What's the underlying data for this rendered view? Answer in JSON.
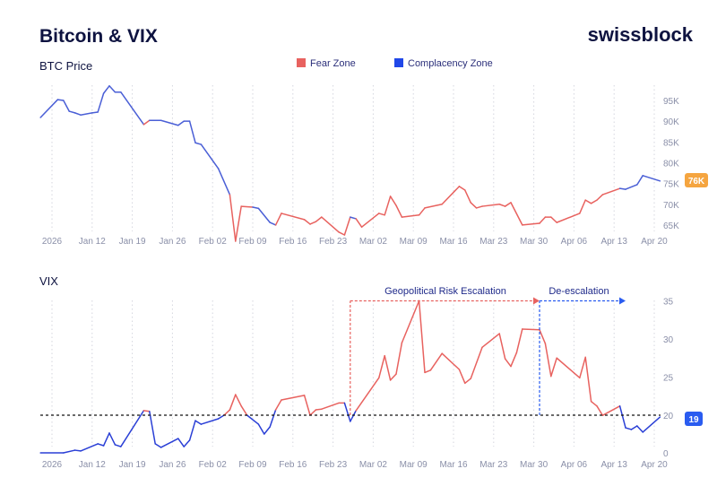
{
  "header": {
    "title": "Bitcoin & VIX",
    "brand": "swissblock"
  },
  "legend": [
    {
      "label": "Fear Zone",
      "color": "#e8625f"
    },
    {
      "label": "Complacency Zone",
      "color": "#2047e8"
    }
  ],
  "chart_data": [
    {
      "type": "line",
      "title": "BTC Price",
      "x_ticks": [
        "2026",
        "Jan 12",
        "Jan 19",
        "Jan 26",
        "Feb 02",
        "Feb 09",
        "Feb 16",
        "Feb 23",
        "Mar 02",
        "Mar 09",
        "Mar 16",
        "Mar 23",
        "Mar 30",
        "Apr 06",
        "Apr 13",
        "Apr 20"
      ],
      "y_ticks": [
        "65K",
        "70K",
        "75K",
        "80K",
        "85K",
        "90K",
        "95K"
      ],
      "y_unit": "K USD",
      "grid": "vertical dotted",
      "zone_colors": {
        "fear": "#e8625f",
        "complacency": "#4a5fd6"
      },
      "last_value_label": "76K",
      "last_value_color": "#f5a540",
      "points": [
        [
          "2026-01-03",
          90.9,
          "c"
        ],
        [
          "2026-01-06",
          95.2,
          "c"
        ],
        [
          "2026-01-07",
          95.0,
          "c"
        ],
        [
          "2026-01-08",
          92.4,
          "c"
        ],
        [
          "2026-01-09",
          92.0,
          "c"
        ],
        [
          "2026-01-10",
          91.5,
          "c"
        ],
        [
          "2026-01-12",
          92.0,
          "c"
        ],
        [
          "2026-01-13",
          92.2,
          "c"
        ],
        [
          "2026-01-14",
          96.7,
          "c"
        ],
        [
          "2026-01-15",
          98.5,
          "c"
        ],
        [
          "2026-01-16",
          97.0,
          "c"
        ],
        [
          "2026-01-17",
          97.0,
          "c"
        ],
        [
          "2026-01-21",
          89.2,
          "c"
        ],
        [
          "2026-01-22",
          90.2,
          "f"
        ],
        [
          "2026-01-24",
          90.2,
          "c"
        ],
        [
          "2026-01-27",
          89.0,
          "c"
        ],
        [
          "2026-01-28",
          90.0,
          "c"
        ],
        [
          "2026-01-29",
          90.0,
          "c"
        ],
        [
          "2026-01-30",
          84.8,
          "c"
        ],
        [
          "2026-01-31",
          84.4,
          "c"
        ],
        [
          "2026-02-03",
          78.6,
          "c"
        ],
        [
          "2026-02-05",
          72.3,
          "c"
        ],
        [
          "2026-02-06",
          61.1,
          "f"
        ],
        [
          "2026-02-07",
          69.5,
          "f"
        ],
        [
          "2026-02-09",
          69.3,
          "f"
        ],
        [
          "2026-02-10",
          69.0,
          "c"
        ],
        [
          "2026-02-12",
          65.6,
          "c"
        ],
        [
          "2026-02-13",
          65.0,
          "c"
        ],
        [
          "2026-02-14",
          67.8,
          "f"
        ],
        [
          "2026-02-18",
          66.3,
          "f"
        ],
        [
          "2026-02-19",
          65.2,
          "f"
        ],
        [
          "2026-02-20",
          65.8,
          "f"
        ],
        [
          "2026-02-21",
          66.9,
          "f"
        ],
        [
          "2026-02-24",
          63.3,
          "f"
        ],
        [
          "2026-02-25",
          62.6,
          "f"
        ],
        [
          "2026-02-26",
          66.9,
          "f"
        ],
        [
          "2026-02-27",
          66.5,
          "c"
        ],
        [
          "2026-02-28",
          64.5,
          "f"
        ],
        [
          "2026-03-03",
          67.8,
          "f"
        ],
        [
          "2026-03-04",
          67.4,
          "f"
        ],
        [
          "2026-03-05",
          71.9,
          "f"
        ],
        [
          "2026-03-06",
          69.7,
          "f"
        ],
        [
          "2026-03-07",
          66.9,
          "f"
        ],
        [
          "2026-03-10",
          67.4,
          "f"
        ],
        [
          "2026-03-11",
          69.1,
          "f"
        ],
        [
          "2026-03-14",
          70.0,
          "f"
        ],
        [
          "2026-03-17",
          74.3,
          "f"
        ],
        [
          "2026-03-18",
          73.4,
          "f"
        ],
        [
          "2026-03-19",
          70.4,
          "f"
        ],
        [
          "2026-03-20",
          69.1,
          "f"
        ],
        [
          "2026-03-21",
          69.5,
          "f"
        ],
        [
          "2026-03-24",
          70.0,
          "f"
        ],
        [
          "2026-03-25",
          69.5,
          "f"
        ],
        [
          "2026-03-26",
          70.4,
          "f"
        ],
        [
          "2026-03-28",
          65.0,
          "f"
        ],
        [
          "2026-03-31",
          65.4,
          "f"
        ],
        [
          "2026-04-01",
          66.9,
          "f"
        ],
        [
          "2026-04-02",
          66.9,
          "f"
        ],
        [
          "2026-04-03",
          65.6,
          "f"
        ],
        [
          "2026-04-07",
          67.8,
          "f"
        ],
        [
          "2026-04-08",
          71.0,
          "f"
        ],
        [
          "2026-04-09",
          70.2,
          "f"
        ],
        [
          "2026-04-10",
          71.0,
          "f"
        ],
        [
          "2026-04-11",
          72.3,
          "f"
        ],
        [
          "2026-04-14",
          73.8,
          "f"
        ],
        [
          "2026-04-15",
          73.6,
          "c"
        ],
        [
          "2026-04-17",
          74.7,
          "c"
        ],
        [
          "2026-04-18",
          76.9,
          "c"
        ],
        [
          "2026-04-21",
          75.6,
          "c"
        ]
      ]
    },
    {
      "type": "line",
      "title": "VIX",
      "x_ticks": [
        "2026",
        "Jan 12",
        "Jan 19",
        "Jan 26",
        "Feb 02",
        "Feb 09",
        "Feb 16",
        "Feb 23",
        "Mar 02",
        "Mar 09",
        "Mar 16",
        "Mar 23",
        "Mar 30",
        "Apr 06",
        "Apr 13",
        "Apr 20"
      ],
      "y_ticks": [
        "0",
        "20",
        "25",
        "30",
        "35"
      ],
      "threshold": 20,
      "grid": "vertical dotted",
      "zone_colors": {
        "fear": "#e8625f",
        "complacency": "#2a3fd6"
      },
      "last_value_label": "19",
      "last_value_color": "#2a5cf0",
      "annotations": [
        {
          "label": "Geopolitical Risk Escalation",
          "from": "2026-02-26",
          "to": "2026-03-31",
          "color": "#e8625f"
        },
        {
          "label": "De-escalation",
          "from": "2026-03-31",
          "to": "2026-04-15",
          "color": "#2a5cf0"
        }
      ],
      "points": [
        [
          "2026-01-03",
          0,
          "c"
        ],
        [
          "2026-01-07",
          0,
          "c"
        ],
        [
          "2026-01-09",
          1.4,
          "c"
        ],
        [
          "2026-01-10",
          1.0,
          "c"
        ],
        [
          "2026-01-13",
          4.8,
          "c"
        ],
        [
          "2026-01-14",
          3.8,
          "c"
        ],
        [
          "2026-01-15",
          10.5,
          "c"
        ],
        [
          "2026-01-16",
          4.3,
          "c"
        ],
        [
          "2026-01-17",
          3.3,
          "c"
        ],
        [
          "2026-01-21",
          20.6,
          "c"
        ],
        [
          "2026-01-22",
          20.5,
          "f"
        ],
        [
          "2026-01-23",
          4.8,
          "c"
        ],
        [
          "2026-01-24",
          2.9,
          "c"
        ],
        [
          "2026-01-27",
          7.6,
          "c"
        ],
        [
          "2026-01-28",
          3.3,
          "c"
        ],
        [
          "2026-01-29",
          6.7,
          "c"
        ],
        [
          "2026-01-30",
          17.1,
          "c"
        ],
        [
          "2026-01-31",
          15.2,
          "c"
        ],
        [
          "2026-02-03",
          18.1,
          "c"
        ],
        [
          "2026-02-04",
          20.0,
          "c"
        ],
        [
          "2026-02-05",
          20.7,
          "f"
        ],
        [
          "2026-02-06",
          22.7,
          "f"
        ],
        [
          "2026-02-07",
          21.2,
          "f"
        ],
        [
          "2026-02-08",
          20.0,
          "f"
        ],
        [
          "2026-02-10",
          15.2,
          "c"
        ],
        [
          "2026-02-11",
          10.0,
          "c"
        ],
        [
          "2026-02-12",
          13.8,
          "c"
        ],
        [
          "2026-02-13",
          20.7,
          "c"
        ],
        [
          "2026-02-14",
          22.0,
          "f"
        ],
        [
          "2026-02-18",
          22.6,
          "f"
        ],
        [
          "2026-02-19",
          20.0,
          "f"
        ],
        [
          "2026-02-20",
          20.7,
          "f"
        ],
        [
          "2026-02-21",
          20.8,
          "f"
        ],
        [
          "2026-02-24",
          21.6,
          "f"
        ],
        [
          "2026-02-25",
          21.6,
          "f"
        ],
        [
          "2026-02-26",
          16.7,
          "c"
        ],
        [
          "2026-02-27",
          20.6,
          "c"
        ],
        [
          "2026-03-03",
          24.9,
          "f"
        ],
        [
          "2026-03-04",
          27.8,
          "f"
        ],
        [
          "2026-03-05",
          24.6,
          "f"
        ],
        [
          "2026-03-06",
          25.4,
          "f"
        ],
        [
          "2026-03-07",
          29.5,
          "f"
        ],
        [
          "2026-03-10",
          35.0,
          "f"
        ],
        [
          "2026-03-11",
          25.6,
          "f"
        ],
        [
          "2026-03-12",
          25.9,
          "f"
        ],
        [
          "2026-03-14",
          28.1,
          "f"
        ],
        [
          "2026-03-17",
          26.0,
          "f"
        ],
        [
          "2026-03-18",
          24.2,
          "f"
        ],
        [
          "2026-03-19",
          24.8,
          "f"
        ],
        [
          "2026-03-21",
          28.9,
          "f"
        ],
        [
          "2026-03-24",
          30.7,
          "f"
        ],
        [
          "2026-03-25",
          27.4,
          "f"
        ],
        [
          "2026-03-26",
          26.4,
          "f"
        ],
        [
          "2026-03-27",
          28.2,
          "f"
        ],
        [
          "2026-03-28",
          31.3,
          "f"
        ],
        [
          "2026-03-31",
          31.2,
          "f"
        ],
        [
          "2026-04-01",
          29.4,
          "f"
        ],
        [
          "2026-04-02",
          25.1,
          "f"
        ],
        [
          "2026-04-03",
          27.5,
          "f"
        ],
        [
          "2026-04-07",
          24.9,
          "f"
        ],
        [
          "2026-04-08",
          27.6,
          "f"
        ],
        [
          "2026-04-09",
          21.8,
          "f"
        ],
        [
          "2026-04-10",
          21.2,
          "f"
        ],
        [
          "2026-04-11",
          19.9,
          "f"
        ],
        [
          "2026-04-14",
          21.2,
          "f"
        ],
        [
          "2026-04-15",
          13.3,
          "c"
        ],
        [
          "2026-04-16",
          12.4,
          "c"
        ],
        [
          "2026-04-17",
          14.3,
          "c"
        ],
        [
          "2026-04-18",
          11.0,
          "c"
        ],
        [
          "2026-04-21",
          19.0,
          "c"
        ]
      ]
    }
  ]
}
